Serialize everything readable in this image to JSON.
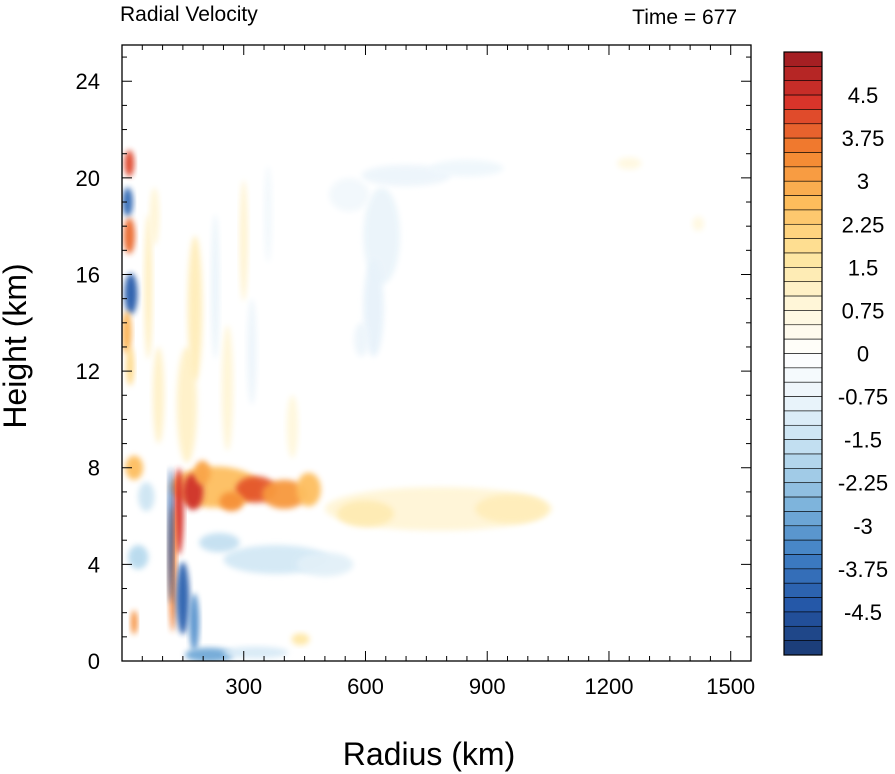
{
  "chart_data": {
    "type": "heatmap",
    "title_left": "Radial Velocity",
    "title_right": "Time = 677",
    "xlabel": "Radius (km)",
    "ylabel": "Height (km)",
    "xlim": [
      0,
      1550
    ],
    "ylim": [
      0,
      25.5
    ],
    "xticks": [
      300,
      600,
      900,
      1200,
      1500
    ],
    "xtick_labels": [
      "300",
      "600",
      "900",
      "1200",
      "1500"
    ],
    "yticks": [
      0,
      4,
      8,
      12,
      16,
      20,
      24
    ],
    "ytick_labels": [
      "0",
      "4",
      "8",
      "12",
      "16",
      "20",
      "24"
    ],
    "colorbar": {
      "min": -5.25,
      "max": 5.25,
      "step": 0.25,
      "labels": [
        "4.5",
        "3.75",
        "3",
        "2.25",
        "1.5",
        "0.75",
        "0",
        "-0.75",
        "-1.5",
        "-2.25",
        "-3",
        "-3.75",
        "-4.5"
      ],
      "label_values": [
        4.5,
        3.75,
        3,
        2.25,
        1.5,
        0.75,
        0,
        -0.75,
        -1.5,
        -2.25,
        -3,
        -3.75,
        -4.5
      ],
      "palette": [
        "#1a3a72",
        "#2558a8",
        "#3f7fc4",
        "#7eb4dc",
        "#bcdcef",
        "#e8f3fa",
        "#ffffff",
        "#fff6d8",
        "#fee49a",
        "#fdbd5c",
        "#f4842f",
        "#d8342a",
        "#9c1c22"
      ]
    },
    "features": [
      {
        "name": "mid-level outflow jet",
        "x": [
          120,
          490
        ],
        "y": [
          6.0,
          8.6
        ],
        "value": 4.5
      },
      {
        "name": "low-level inflow band",
        "x": [
          110,
          190
        ],
        "y": [
          0.3,
          4.5
        ],
        "value": -4.5
      },
      {
        "name": "outer outflow layer",
        "x": [
          520,
          1060
        ],
        "y": [
          5.3,
          7.5
        ],
        "value": 1.0
      },
      {
        "name": "upper inflow arc",
        "x": [
          600,
          980
        ],
        "y": [
          12,
          20.5
        ],
        "value": -0.8
      },
      {
        "name": "upper near-core oscillations",
        "x": [
          0,
          80
        ],
        "y": [
          13,
          21
        ],
        "value": 4.0
      }
    ]
  }
}
